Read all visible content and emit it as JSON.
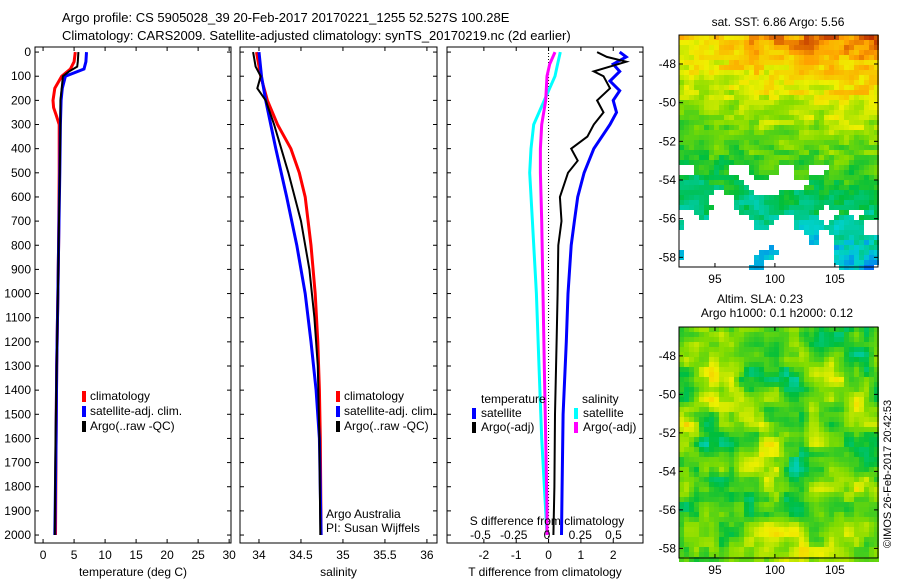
{
  "title": {
    "line1": "Argo profile: CS 5905028_39 20-Feb-2017 20170221_1255 52.527S 100.28E",
    "line2": "Climatology: CARS2009. Satellite-adjusted climatology: synTS_20170219.nc (2d earlier)"
  },
  "copyright": "©IMOS 26-Feb-2017 20:42:53",
  "chart_data": [
    {
      "type": "line",
      "id": "temperature",
      "xlabel": "temperature (deg C)",
      "ylabel": "",
      "xlim": [
        -1.3,
        30.3
      ],
      "ylim": [
        2033,
        -21
      ],
      "xticks": [
        0,
        5,
        10,
        15,
        20,
        25,
        30
      ],
      "yticks": [
        0,
        100,
        200,
        300,
        400,
        500,
        600,
        700,
        800,
        900,
        1000,
        1100,
        1200,
        1300,
        1400,
        1500,
        1600,
        1700,
        1800,
        1900,
        2000
      ],
      "legend": [
        "climatology",
        "satellite-adj. clim.",
        "Argo(..raw -QC)"
      ],
      "series": [
        {
          "name": "climatology",
          "color": "#ff0000",
          "depth": [
            0,
            40,
            70,
            100,
            150,
            200,
            230,
            260,
            300,
            500,
            800,
            1000,
            1300,
            1600,
            2000
          ],
          "values": [
            5.2,
            5.0,
            4.4,
            3.0,
            1.9,
            1.6,
            1.7,
            2.1,
            2.6,
            2.6,
            2.5,
            2.4,
            2.2,
            2.1,
            2.0
          ]
        },
        {
          "name": "satellite-adj. clim.",
          "color": "#0000ff",
          "depth": [
            0,
            40,
            70,
            100,
            150,
            200,
            300,
            500,
            800,
            1000,
            1300,
            1600,
            2000
          ],
          "values": [
            7.0,
            6.9,
            6.6,
            3.6,
            3.1,
            2.9,
            2.8,
            2.7,
            2.5,
            2.4,
            2.2,
            2.1,
            1.9
          ]
        },
        {
          "name": "Argo(..raw -QC)",
          "color": "#000000",
          "depth": [
            0,
            40,
            60,
            80,
            100,
            150,
            200,
            300,
            500,
            800,
            1000,
            1300,
            1600,
            2000
          ],
          "values": [
            5.7,
            5.6,
            5.5,
            4.2,
            3.2,
            3.0,
            2.8,
            2.8,
            2.7,
            2.5,
            2.4,
            2.2,
            2.0,
            1.9
          ]
        }
      ]
    },
    {
      "type": "line",
      "id": "salinity",
      "xlabel": "salinity",
      "xlim": [
        33.774,
        36.12
      ],
      "ylim": [
        2033,
        -21
      ],
      "xticks": [
        34,
        34.5,
        35,
        35.5,
        36
      ],
      "legend": [
        "climatology",
        "satellite-adj. clim.",
        "Argo(..raw -QC)"
      ],
      "annotation": [
        "Argo Australia",
        "PI: Susan Wijffels"
      ],
      "series": [
        {
          "name": "climatology",
          "color": "#ff0000",
          "depth": [
            0,
            100,
            200,
            300,
            400,
            500,
            600,
            800,
            1000,
            1200,
            1400,
            1600,
            2000
          ],
          "values": [
            33.97,
            34.02,
            34.1,
            34.22,
            34.38,
            34.48,
            34.55,
            34.62,
            34.67,
            34.7,
            34.72,
            34.73,
            34.74
          ]
        },
        {
          "name": "satellite-adj. clim.",
          "color": "#0000ff",
          "depth": [
            0,
            100,
            200,
            400,
            600,
            800,
            1000,
            1200,
            1400,
            1600,
            2000
          ],
          "values": [
            34.0,
            34.03,
            34.08,
            34.2,
            34.33,
            34.45,
            34.55,
            34.62,
            34.68,
            34.72,
            34.74
          ]
        },
        {
          "name": "Argo(..raw -QC)",
          "color": "#000000",
          "depth": [
            0,
            60,
            100,
            150,
            200,
            300,
            500,
            700,
            900,
            1100,
            1300,
            1600,
            2000
          ],
          "values": [
            33.93,
            33.96,
            34.02,
            33.98,
            34.08,
            34.18,
            34.35,
            34.5,
            34.6,
            34.66,
            34.7,
            34.72,
            34.73
          ]
        }
      ]
    },
    {
      "type": "line",
      "id": "difference",
      "xlabel": "T difference from climatology",
      "xlabel2": "S difference from climatology",
      "xlim": [
        -3.14,
        2.92
      ],
      "xlim_s": [
        -0.51,
        0.97
      ],
      "ylim": [
        2033,
        -21
      ],
      "xticks": [
        -2,
        -1,
        0,
        1,
        2
      ],
      "xticks_s": [
        "-0.5",
        "-0.25",
        "0",
        "0.25",
        "0.5"
      ],
      "legend_headers": [
        "temperature",
        "salinity"
      ],
      "legend": [
        "satellite",
        "Argo(-adj)",
        "satellite",
        "Argo(-adj)"
      ],
      "series": [
        {
          "name": "temperature satellite",
          "axis": "T",
          "color": "#0000ff",
          "depth": [
            0,
            20,
            50,
            80,
            120,
            160,
            200,
            250,
            300,
            400,
            500,
            600,
            700,
            800,
            1000,
            1200,
            1500,
            1800,
            2000
          ],
          "values": [
            2.2,
            2.4,
            2.0,
            2.2,
            1.9,
            2.2,
            2.0,
            2.1,
            1.9,
            1.4,
            1.1,
            0.9,
            0.8,
            0.7,
            0.6,
            0.55,
            0.45,
            0.42,
            0.4
          ]
        },
        {
          "name": "temperature Argo(-adj)",
          "axis": "T",
          "color": "#000000",
          "depth": [
            0,
            20,
            40,
            60,
            80,
            100,
            150,
            200,
            250,
            300,
            350,
            400,
            450,
            500,
            600,
            700,
            800,
            1000,
            1200,
            1500,
            1800,
            2000
          ],
          "values": [
            1.5,
            1.8,
            2.4,
            1.9,
            1.4,
            1.7,
            1.9,
            1.5,
            1.7,
            1.4,
            1.2,
            0.7,
            0.9,
            0.6,
            0.35,
            0.4,
            0.3,
            0.28,
            0.25,
            0.2,
            0.18,
            0.15
          ]
        },
        {
          "name": "salinity satellite",
          "axis": "S",
          "color": "#00ffff",
          "depth": [
            0,
            50,
            100,
            200,
            300,
            400,
            500,
            700,
            1000,
            1300,
            1600,
            1900,
            2000
          ],
          "values": [
            0.1,
            0.08,
            0.06,
            -0.02,
            -0.1,
            -0.12,
            -0.13,
            -0.11,
            -0.08,
            -0.06,
            -0.04,
            -0.01,
            0.0
          ]
        },
        {
          "name": "salinity Argo(-adj)",
          "axis": "S",
          "color": "#ff00ff",
          "depth": [
            0,
            50,
            100,
            200,
            300,
            400,
            500,
            700,
            1000,
            1300,
            1600,
            1900,
            2000
          ],
          "values": [
            0.06,
            0.02,
            0.0,
            -0.01,
            -0.04,
            -0.05,
            -0.05,
            -0.04,
            -0.03,
            -0.02,
            -0.01,
            0.0,
            0.0
          ]
        }
      ]
    },
    {
      "type": "heatmap",
      "id": "sst-map",
      "title": "sat. SST: 6.86 Argo: 5.56",
      "xlim": [
        92.0,
        108.6
      ],
      "ylim": [
        -46.5,
        -58.5
      ],
      "xticks": [
        95,
        100,
        105
      ],
      "yticks": [
        -48,
        -50,
        -52,
        -54,
        -56,
        -58
      ]
    },
    {
      "type": "heatmap",
      "id": "sla-map",
      "title": "Altim. SLA: 0.23",
      "subtitle": "Argo h1000: 0.1 h2000: 0.12",
      "xlim": [
        92.0,
        108.6
      ],
      "ylim": [
        -46.5,
        -58.5
      ],
      "xticks": [
        95,
        100,
        105
      ],
      "yticks": [
        -48,
        -50,
        -52,
        -54,
        -56,
        -58
      ]
    }
  ]
}
